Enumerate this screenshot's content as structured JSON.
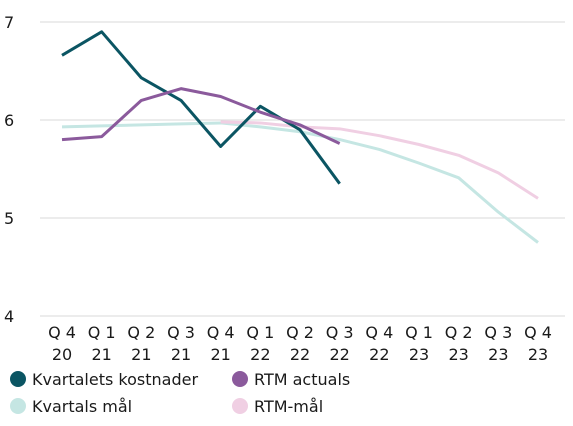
{
  "chart_data": {
    "type": "line",
    "categories": [
      [
        "Q 4",
        "20"
      ],
      [
        "Q 1",
        "21"
      ],
      [
        "Q 2",
        "21"
      ],
      [
        "Q 3",
        "21"
      ],
      [
        "Q 4",
        "21"
      ],
      [
        "Q 1",
        "22"
      ],
      [
        "Q 2",
        "22"
      ],
      [
        "Q 3",
        "22"
      ],
      [
        "Q 4",
        "22"
      ],
      [
        "Q 1",
        "23"
      ],
      [
        "Q 2",
        "23"
      ],
      [
        "Q 3",
        "23"
      ],
      [
        "Q 4",
        "23"
      ]
    ],
    "series": [
      {
        "name": "Kvartalets kostnader",
        "color": "#0b5563",
        "values": [
          6.66,
          6.9,
          6.43,
          6.2,
          5.73,
          6.14,
          5.9,
          5.35,
          null,
          null,
          null,
          null,
          null
        ]
      },
      {
        "name": "RTM actuals",
        "color": "#8b5a9c",
        "values": [
          5.8,
          5.83,
          6.2,
          6.32,
          6.24,
          6.08,
          5.95,
          5.76,
          null,
          null,
          null,
          null,
          null
        ]
      },
      {
        "name": "Kvartals mål",
        "color": "#c5e6e3",
        "values": [
          5.93,
          5.94,
          5.95,
          5.96,
          5.97,
          5.93,
          5.88,
          5.8,
          5.7,
          5.56,
          5.41,
          5.06,
          4.75
        ]
      },
      {
        "name": "RTM-mål",
        "color": "#f0cfe3",
        "values": [
          null,
          null,
          null,
          null,
          5.98,
          5.97,
          5.93,
          5.91,
          5.84,
          5.75,
          5.64,
          5.46,
          5.2
        ]
      }
    ],
    "ylim": [
      4,
      7
    ],
    "yticks": [
      4,
      5,
      6,
      7
    ],
    "grid": true
  }
}
